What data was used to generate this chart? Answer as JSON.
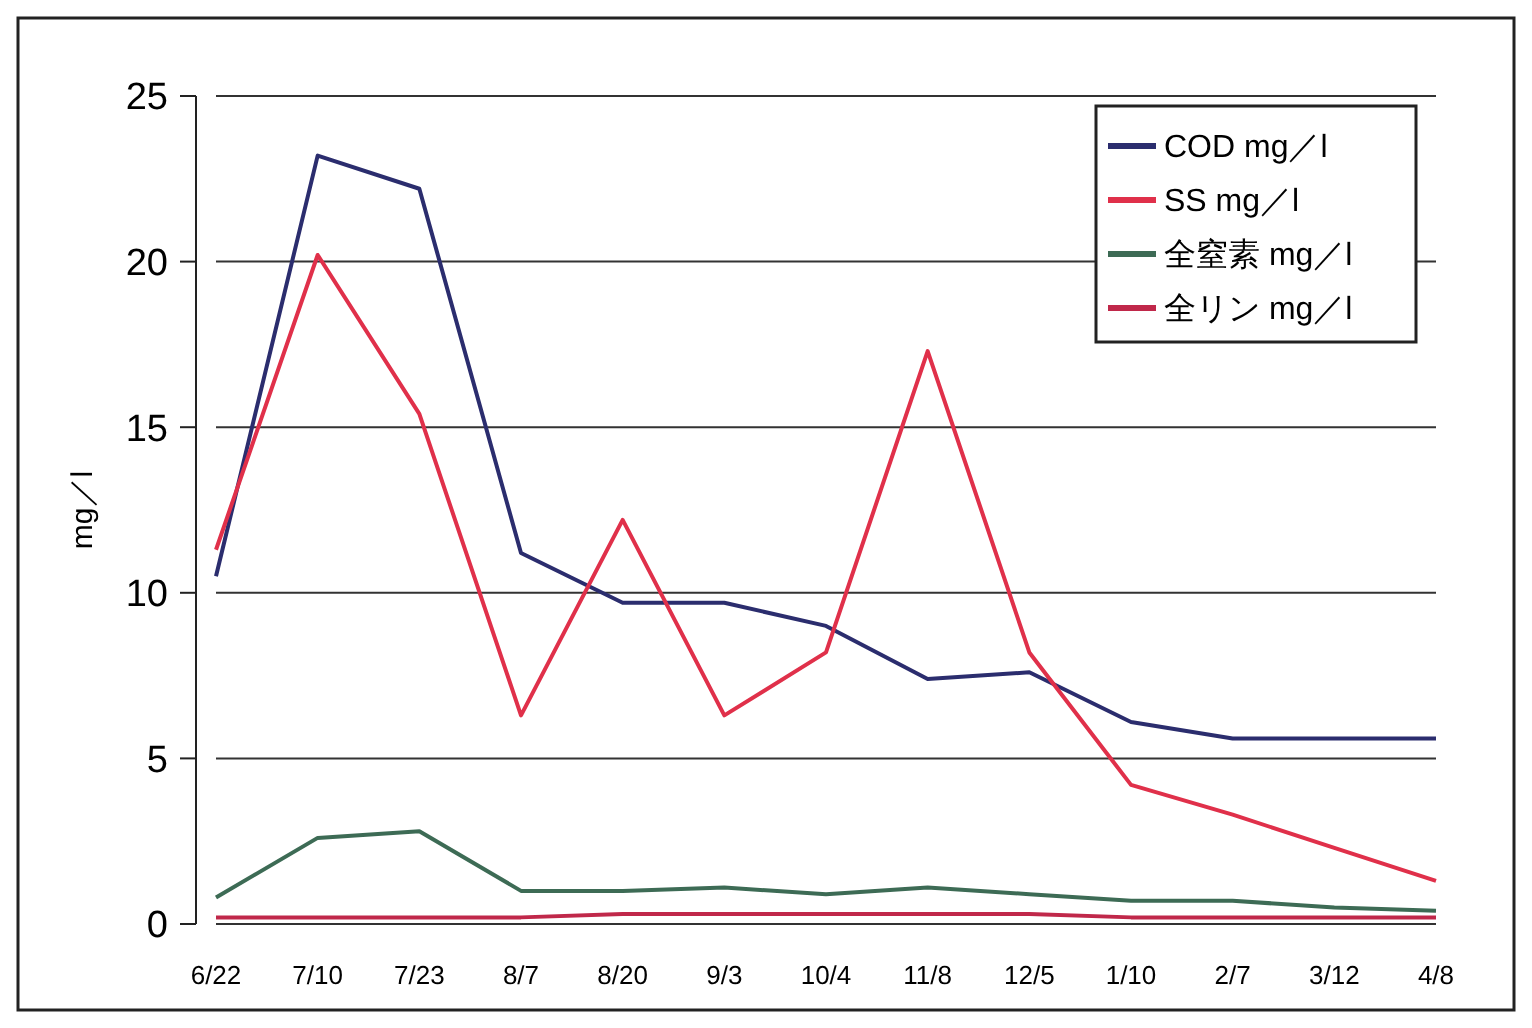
{
  "chart_data": {
    "type": "line",
    "ylabel": "mg／l",
    "categories": [
      "6/22",
      "7/10",
      "7/23",
      "8/7",
      "8/20",
      "9/3",
      "10/4",
      "11/8",
      "12/5",
      "1/10",
      "2/7",
      "3/12",
      "4/8"
    ],
    "ylim": [
      0,
      25
    ],
    "yticks": [
      0,
      5,
      10,
      15,
      20,
      25
    ],
    "grid": "y",
    "legend": "top right",
    "marker": "none",
    "line_style": "solid",
    "series": [
      {
        "name": "COD mg／l",
        "color": "#2b2d6e",
        "values": [
          10.5,
          23.2,
          22.2,
          11.2,
          9.7,
          9.7,
          9.0,
          7.4,
          7.6,
          6.1,
          5.6,
          5.6,
          5.6
        ]
      },
      {
        "name": "SS mg／l",
        "color": "#e0304a",
        "values": [
          11.3,
          20.2,
          15.4,
          6.3,
          12.2,
          6.3,
          8.2,
          17.3,
          8.2,
          4.2,
          3.3,
          2.3,
          1.3
        ]
      },
      {
        "name": "全窒素 mg／l",
        "color": "#3d6b55",
        "values": [
          0.8,
          2.6,
          2.8,
          1.0,
          1.0,
          1.1,
          0.9,
          1.1,
          0.9,
          0.7,
          0.7,
          0.5,
          0.4
        ]
      },
      {
        "name": "全リン mg／l",
        "color": "#c0284a",
        "values": [
          0.2,
          0.2,
          0.2,
          0.2,
          0.3,
          0.3,
          0.3,
          0.3,
          0.3,
          0.2,
          0.2,
          0.2,
          0.2
        ]
      }
    ]
  }
}
